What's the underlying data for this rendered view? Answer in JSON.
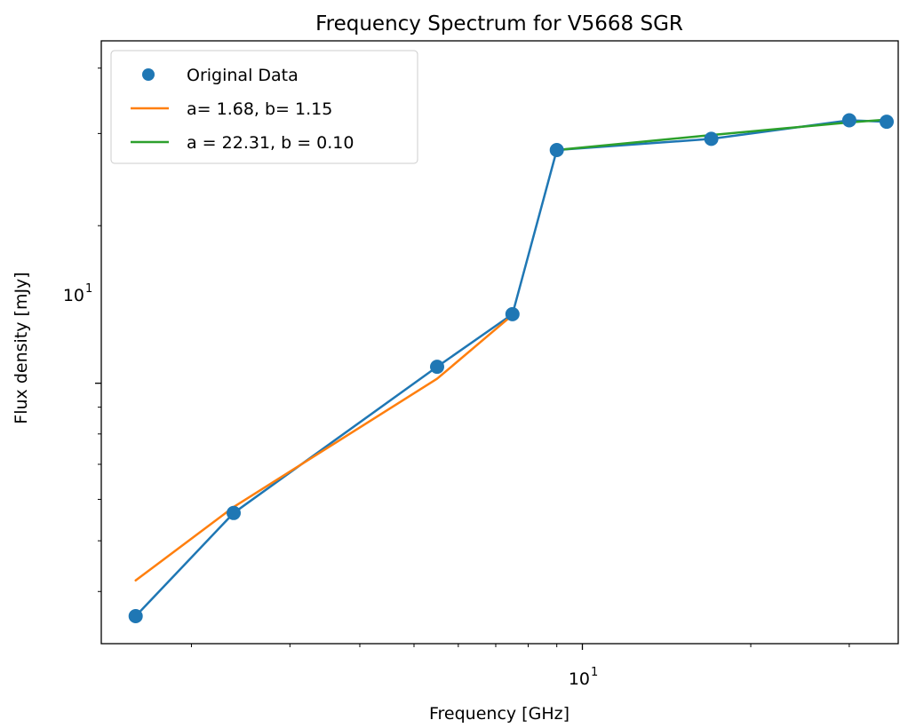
{
  "chart_data": {
    "type": "line",
    "title": "Frequency Spectrum for V5668 SGR",
    "xlabel": "Frequency [GHz]",
    "ylabel": "Flux density [mJy]",
    "x_scale": "log",
    "y_scale": "log",
    "xlim": [
      1.38,
      36.7
    ],
    "ylim": [
      3.18,
      45.1
    ],
    "x_major_tick_label": {
      "base": "10",
      "exp": "1"
    },
    "y_major_tick_label": {
      "base": "10",
      "exp": "1"
    },
    "grid": false,
    "legend_position": "upper-left",
    "series": [
      {
        "name": "Original Data",
        "style": "markers",
        "color": "#1f77b4",
        "x": [
          1.59,
          2.38,
          5.5,
          7.5,
          9.0,
          17.0,
          30.0,
          35.0
        ],
        "y": [
          3.59,
          5.65,
          10.75,
          13.55,
          27.9,
          29.3,
          31.8,
          31.6
        ]
      },
      {
        "name": "",
        "style": "line",
        "color": "#1f77b4",
        "x": [
          1.59,
          2.38,
          5.5,
          7.5,
          9.0,
          17.0,
          30.0,
          35.0
        ],
        "y": [
          3.59,
          5.65,
          10.75,
          13.55,
          27.9,
          29.3,
          31.8,
          31.6
        ]
      },
      {
        "name": "a= 1.68, b= 1.15",
        "style": "line",
        "color": "#ff7f0e",
        "x": [
          1.59,
          2.38,
          5.5,
          7.5
        ],
        "y": [
          4.2,
          5.8,
          10.2,
          13.5
        ]
      },
      {
        "name": "a = 22.31, b = 0.10",
        "style": "line",
        "color": "#2ca02c",
        "x": [
          9.0,
          17.0,
          30.0,
          35.0
        ],
        "y": [
          27.9,
          29.8,
          31.5,
          31.9
        ]
      }
    ]
  }
}
